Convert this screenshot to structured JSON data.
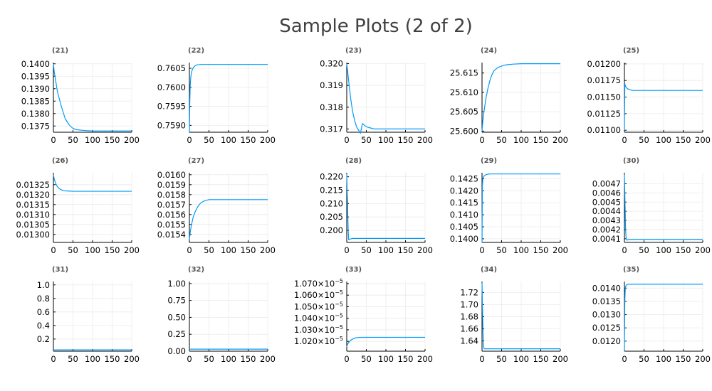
{
  "figure": {
    "title": "Sample Plots (2 of 2)",
    "line_color": "#009af9",
    "axis_color": "#000000",
    "grid_color": "#ebebeb"
  },
  "chart_data": [
    {
      "type": "line",
      "title": "(21)",
      "xlim": [
        0,
        200
      ],
      "xticks": [
        0,
        50,
        100,
        150,
        200
      ],
      "ylim": [
        0.13725,
        0.14005
      ],
      "yticks": [
        0.1375,
        0.138,
        0.1385,
        0.139,
        0.1395,
        0.14
      ],
      "ytick_labels": [
        "0.1375",
        "0.1380",
        "0.1385",
        "0.1390",
        "0.1395",
        "0.1400"
      ],
      "series": [
        {
          "x": [
            0,
            2,
            5,
            10,
            15,
            20,
            25,
            30,
            40,
            50,
            60,
            80,
            100,
            150,
            200
          ],
          "y": [
            0.14,
            0.1397,
            0.1394,
            0.1389,
            0.1386,
            0.1383,
            0.13805,
            0.1378,
            0.13755,
            0.1374,
            0.13735,
            0.13732,
            0.1373,
            0.1373,
            0.1373
          ]
        }
      ]
    },
    {
      "type": "line",
      "title": "(22)",
      "xlim": [
        0,
        200
      ],
      "xticks": [
        0,
        50,
        100,
        150,
        200
      ],
      "ylim": [
        0.75882,
        0.76065
      ],
      "yticks": [
        0.759,
        0.7595,
        0.76,
        0.7605
      ],
      "ytick_labels": [
        "0.7590",
        "0.7595",
        "0.7600",
        "0.7605"
      ],
      "series": [
        {
          "x": [
            0,
            1,
            2,
            3,
            4,
            5,
            7,
            10,
            15,
            20,
            30,
            40,
            50,
            60,
            80,
            100,
            150,
            200
          ],
          "y": [
            0.7588,
            0.7596,
            0.76,
            0.7602,
            0.7603,
            0.76037,
            0.76045,
            0.76052,
            0.76057,
            0.76059,
            0.7606,
            0.7606,
            0.7606,
            0.7606,
            0.7606,
            0.7606,
            0.7606,
            0.7606
          ]
        }
      ]
    },
    {
      "type": "line",
      "title": "(23)",
      "xlim": [
        0,
        200
      ],
      "xticks": [
        0,
        50,
        100,
        150,
        200
      ],
      "ylim": [
        0.31685,
        0.32005
      ],
      "yticks": [
        0.317,
        0.318,
        0.319,
        0.32
      ],
      "ytick_labels": [
        "0.317",
        "0.318",
        "0.319",
        "0.320"
      ],
      "series": [
        {
          "x": [
            0,
            2,
            5,
            10,
            15,
            20,
            25,
            30,
            35,
            40,
            50,
            60,
            70,
            80,
            100,
            150,
            200
          ],
          "y": [
            0.32,
            0.3197,
            0.3192,
            0.3184,
            0.3178,
            0.3174,
            0.3171,
            0.31695,
            0.3168,
            0.31725,
            0.3171,
            0.31705,
            0.317,
            0.317,
            0.317,
            0.317,
            0.317
          ]
        }
      ]
    },
    {
      "type": "line",
      "title": "(24)",
      "xlim": [
        0,
        200
      ],
      "xticks": [
        0,
        50,
        100,
        150,
        200
      ],
      "ylim": [
        25.5997,
        25.6177
      ],
      "yticks": [
        25.6,
        25.605,
        25.61,
        25.615
      ],
      "ytick_labels": [
        "25.600",
        "25.605",
        "25.610",
        "25.615"
      ],
      "series": [
        {
          "x": [
            0,
            2,
            5,
            10,
            15,
            20,
            25,
            30,
            40,
            50,
            60,
            70,
            80,
            100,
            120,
            150,
            200
          ],
          "y": [
            25.6,
            25.6025,
            25.605,
            25.6085,
            25.611,
            25.613,
            25.6145,
            25.6155,
            25.6164,
            25.6168,
            25.6171,
            25.6172,
            25.6173,
            25.6174,
            25.6174,
            25.6174,
            25.6174
          ]
        }
      ]
    },
    {
      "type": "line",
      "title": "(25)",
      "xlim": [
        0,
        200
      ],
      "xticks": [
        0,
        50,
        100,
        150,
        200
      ],
      "ylim": [
        0.01097,
        0.01202
      ],
      "yticks": [
        0.011,
        0.01125,
        0.0115,
        0.01175,
        0.012
      ],
      "ytick_labels": [
        "0.01100",
        "0.01125",
        "0.01150",
        "0.01175",
        "0.01200"
      ],
      "series": [
        {
          "x": [
            0,
            1,
            2,
            3,
            5,
            10,
            15,
            20,
            30,
            40,
            60,
            80,
            100,
            150,
            200
          ],
          "y": [
            0.011,
            0.0117,
            0.01168,
            0.01166,
            0.01164,
            0.01162,
            0.01161,
            0.0116,
            0.0116,
            0.0116,
            0.0116,
            0.0116,
            0.0116,
            0.0116,
            0.0116
          ]
        }
      ]
    },
    {
      "type": "line",
      "title": "(26)",
      "xlim": [
        0,
        200
      ],
      "xticks": [
        0,
        50,
        100,
        150,
        200
      ],
      "ylim": [
        0.01296,
        0.01331
      ],
      "yticks": [
        0.013,
        0.01305,
        0.0131,
        0.01315,
        0.0132,
        0.01325
      ],
      "ytick_labels": [
        "0.01300",
        "0.01305",
        "0.01310",
        "0.01315",
        "0.01320",
        "0.01325"
      ],
      "series": [
        {
          "x": [
            0,
            2,
            5,
            10,
            15,
            20,
            25,
            30,
            40,
            50,
            60,
            80,
            100,
            150,
            200
          ],
          "y": [
            0.0133,
            0.01328,
            0.01326,
            0.01324,
            0.01323,
            0.013225,
            0.01322,
            0.013219,
            0.013218,
            0.013217,
            0.013217,
            0.013217,
            0.013217,
            0.013217,
            0.013217
          ]
        }
      ]
    },
    {
      "type": "line",
      "title": "(27)",
      "xlim": [
        0,
        200
      ],
      "xticks": [
        0,
        50,
        100,
        150,
        200
      ],
      "ylim": [
        0.01532,
        0.01602
      ],
      "yticks": [
        0.0154,
        0.0155,
        0.0156,
        0.0157,
        0.0158,
        0.0159,
        0.016
      ],
      "ytick_labels": [
        "0.0154",
        "0.0155",
        "0.0156",
        "0.0157",
        "0.0158",
        "0.0159",
        "0.0160"
      ],
      "series": [
        {
          "x": [
            0,
            2,
            5,
            10,
            15,
            20,
            25,
            30,
            40,
            50,
            60,
            80,
            100,
            150,
            200
          ],
          "y": [
            0.01535,
            0.01542,
            0.01549,
            0.01558,
            0.01563,
            0.01567,
            0.0157,
            0.01572,
            0.01574,
            0.01575,
            0.01575,
            0.01575,
            0.01575,
            0.01575,
            0.01575
          ]
        }
      ]
    },
    {
      "type": "line",
      "title": "(28)",
      "xlim": [
        0,
        200
      ],
      "xticks": [
        0,
        50,
        100,
        150,
        200
      ],
      "ylim": [
        0.1955,
        0.2215
      ],
      "yticks": [
        0.2,
        0.205,
        0.21,
        0.215,
        0.22
      ],
      "ytick_labels": [
        "0.200",
        "0.205",
        "0.210",
        "0.215",
        "0.220"
      ],
      "series": [
        {
          "x": [
            0,
            1,
            2,
            3,
            4,
            5,
            6,
            8,
            10,
            15,
            20,
            30,
            40,
            60,
            100,
            150,
            200
          ],
          "y": [
            0.221,
            0.215,
            0.21,
            0.204,
            0.199,
            0.1965,
            0.1966,
            0.1967,
            0.1968,
            0.197,
            0.197,
            0.197,
            0.197,
            0.197,
            0.197,
            0.197,
            0.197
          ]
        }
      ]
    },
    {
      "type": "line",
      "title": "(29)",
      "xlim": [
        0,
        200
      ],
      "xticks": [
        0,
        50,
        100,
        150,
        200
      ],
      "ylim": [
        0.13985,
        0.14275
      ],
      "yticks": [
        0.14,
        0.1405,
        0.141,
        0.1415,
        0.142,
        0.1425
      ],
      "ytick_labels": [
        "0.1400",
        "0.1405",
        "0.1410",
        "0.1415",
        "0.1420",
        "0.1425"
      ],
      "series": [
        {
          "x": [
            0,
            1,
            2,
            3,
            4,
            6,
            8,
            10,
            15,
            20,
            30,
            40,
            50,
            60,
            80,
            100,
            150,
            200
          ],
          "y": [
            0.13985,
            0.1422,
            0.1425,
            0.14255,
            0.1426,
            0.14262,
            0.14265,
            0.14267,
            0.14269,
            0.1427,
            0.1427,
            0.1427,
            0.1427,
            0.1427,
            0.1427,
            0.1427,
            0.1427,
            0.1427
          ]
        }
      ]
    },
    {
      "type": "line",
      "title": "(30)",
      "xlim": [
        0,
        200
      ],
      "xticks": [
        0,
        50,
        100,
        150,
        200
      ],
      "ylim": [
        0.00406,
        0.00482
      ],
      "yticks": [
        0.0041,
        0.0042,
        0.0043,
        0.0044,
        0.0045,
        0.0046,
        0.0047
      ],
      "ytick_labels": [
        "0.0041",
        "0.0042",
        "0.0043",
        "0.0044",
        "0.0045",
        "0.0046",
        "0.0047"
      ],
      "series": [
        {
          "x": [
            0,
            1,
            2,
            3,
            4,
            5,
            6,
            8,
            10,
            15,
            20,
            30,
            40,
            60,
            100,
            150,
            200
          ],
          "y": [
            0.0048,
            0.0046,
            0.0044,
            0.0042,
            0.00412,
            0.00409,
            0.004085,
            0.004088,
            0.00409,
            0.004092,
            0.004093,
            0.004093,
            0.004093,
            0.004093,
            0.004093,
            0.004093,
            0.004093
          ]
        }
      ]
    },
    {
      "type": "line",
      "title": "(31)",
      "xlim": [
        0,
        200
      ],
      "xticks": [
        0,
        50,
        100,
        150,
        200
      ],
      "ylim": [
        0.02,
        1.05
      ],
      "yticks": [
        0.2,
        0.4,
        0.6,
        0.8,
        1.0
      ],
      "ytick_labels": [
        "0.2",
        "0.4",
        "0.6",
        "0.8",
        "1.0"
      ],
      "series": [
        {
          "x": [
            0,
            200
          ],
          "y": [
            0.04,
            0.04
          ]
        }
      ]
    },
    {
      "type": "line",
      "title": "(32)",
      "xlim": [
        0,
        200
      ],
      "xticks": [
        0,
        50,
        100,
        150,
        200
      ],
      "ylim": [
        0.0,
        1.03
      ],
      "yticks": [
        0.0,
        0.25,
        0.5,
        0.75,
        1.0
      ],
      "ytick_labels": [
        "0.00",
        "0.25",
        "0.50",
        "0.75",
        "1.00"
      ],
      "series": [
        {
          "x": [
            0,
            200
          ],
          "y": [
            0.03,
            0.03
          ]
        }
      ]
    },
    {
      "type": "line",
      "title": "(33)",
      "xlim": [
        0,
        200
      ],
      "xticks": [
        0,
        50,
        100,
        150,
        200
      ],
      "ylim": [
        1.0115e-05,
        1.0718e-05
      ],
      "yticks": [
        1.02e-05,
        1.03e-05,
        1.04e-05,
        1.05e-05,
        1.06e-05,
        1.07e-05
      ],
      "ytick_labels": [
        [
          "1.020×10",
          "−5"
        ],
        [
          "1.030×10",
          "−5"
        ],
        [
          "1.040×10",
          "−5"
        ],
        [
          "1.050×10",
          "−5"
        ],
        [
          "1.060×10",
          "−5"
        ],
        [
          "1.070×10",
          "−5"
        ]
      ],
      "series": [
        {
          "x": [
            0,
            2,
            5,
            10,
            15,
            20,
            25,
            30,
            40,
            50,
            60,
            80,
            100,
            150,
            200
          ],
          "y": [
            1.0152e-05,
            1.0175e-05,
            1.019e-05,
            1.021e-05,
            1.022e-05,
            1.0228e-05,
            1.0232e-05,
            1.0234e-05,
            1.0235e-05,
            1.0235e-05,
            1.0235e-05,
            1.0235e-05,
            1.0235e-05,
            1.0235e-05,
            1.0235e-05
          ]
        }
      ]
    },
    {
      "type": "line",
      "title": "(34)",
      "xlim": [
        0,
        200
      ],
      "xticks": [
        0,
        50,
        100,
        150,
        200
      ],
      "ylim": [
        1.623,
        1.738
      ],
      "yticks": [
        1.64,
        1.66,
        1.68,
        1.7,
        1.72
      ],
      "ytick_labels": [
        "1.64",
        "1.66",
        "1.68",
        "1.70",
        "1.72"
      ],
      "series": [
        {
          "x": [
            0,
            1,
            2,
            3,
            4,
            5,
            6,
            8,
            10,
            20,
            40,
            60,
            100,
            150,
            200
          ],
          "y": [
            1.736,
            1.7,
            1.67,
            1.645,
            1.632,
            1.628,
            1.627,
            1.627,
            1.627,
            1.627,
            1.627,
            1.627,
            1.627,
            1.627,
            1.627
          ]
        }
      ]
    },
    {
      "type": "line",
      "title": "(35)",
      "xlim": [
        0,
        200
      ],
      "xticks": [
        0,
        50,
        100,
        150,
        200
      ],
      "ylim": [
        0.01162,
        0.01425
      ],
      "yticks": [
        0.012,
        0.0125,
        0.013,
        0.0135,
        0.014
      ],
      "ytick_labels": [
        "0.0120",
        "0.0125",
        "0.0130",
        "0.0135",
        "0.0140"
      ],
      "series": [
        {
          "x": [
            0,
            1,
            2,
            3,
            4,
            5,
            6,
            8,
            10,
            15,
            20,
            40,
            60,
            100,
            150,
            200
          ],
          "y": [
            0.01165,
            0.0135,
            0.0139,
            0.01405,
            0.0141,
            0.01412,
            0.01413,
            0.01414,
            0.01415,
            0.01415,
            0.01415,
            0.01415,
            0.01415,
            0.01415,
            0.01415,
            0.01415
          ]
        }
      ]
    }
  ]
}
